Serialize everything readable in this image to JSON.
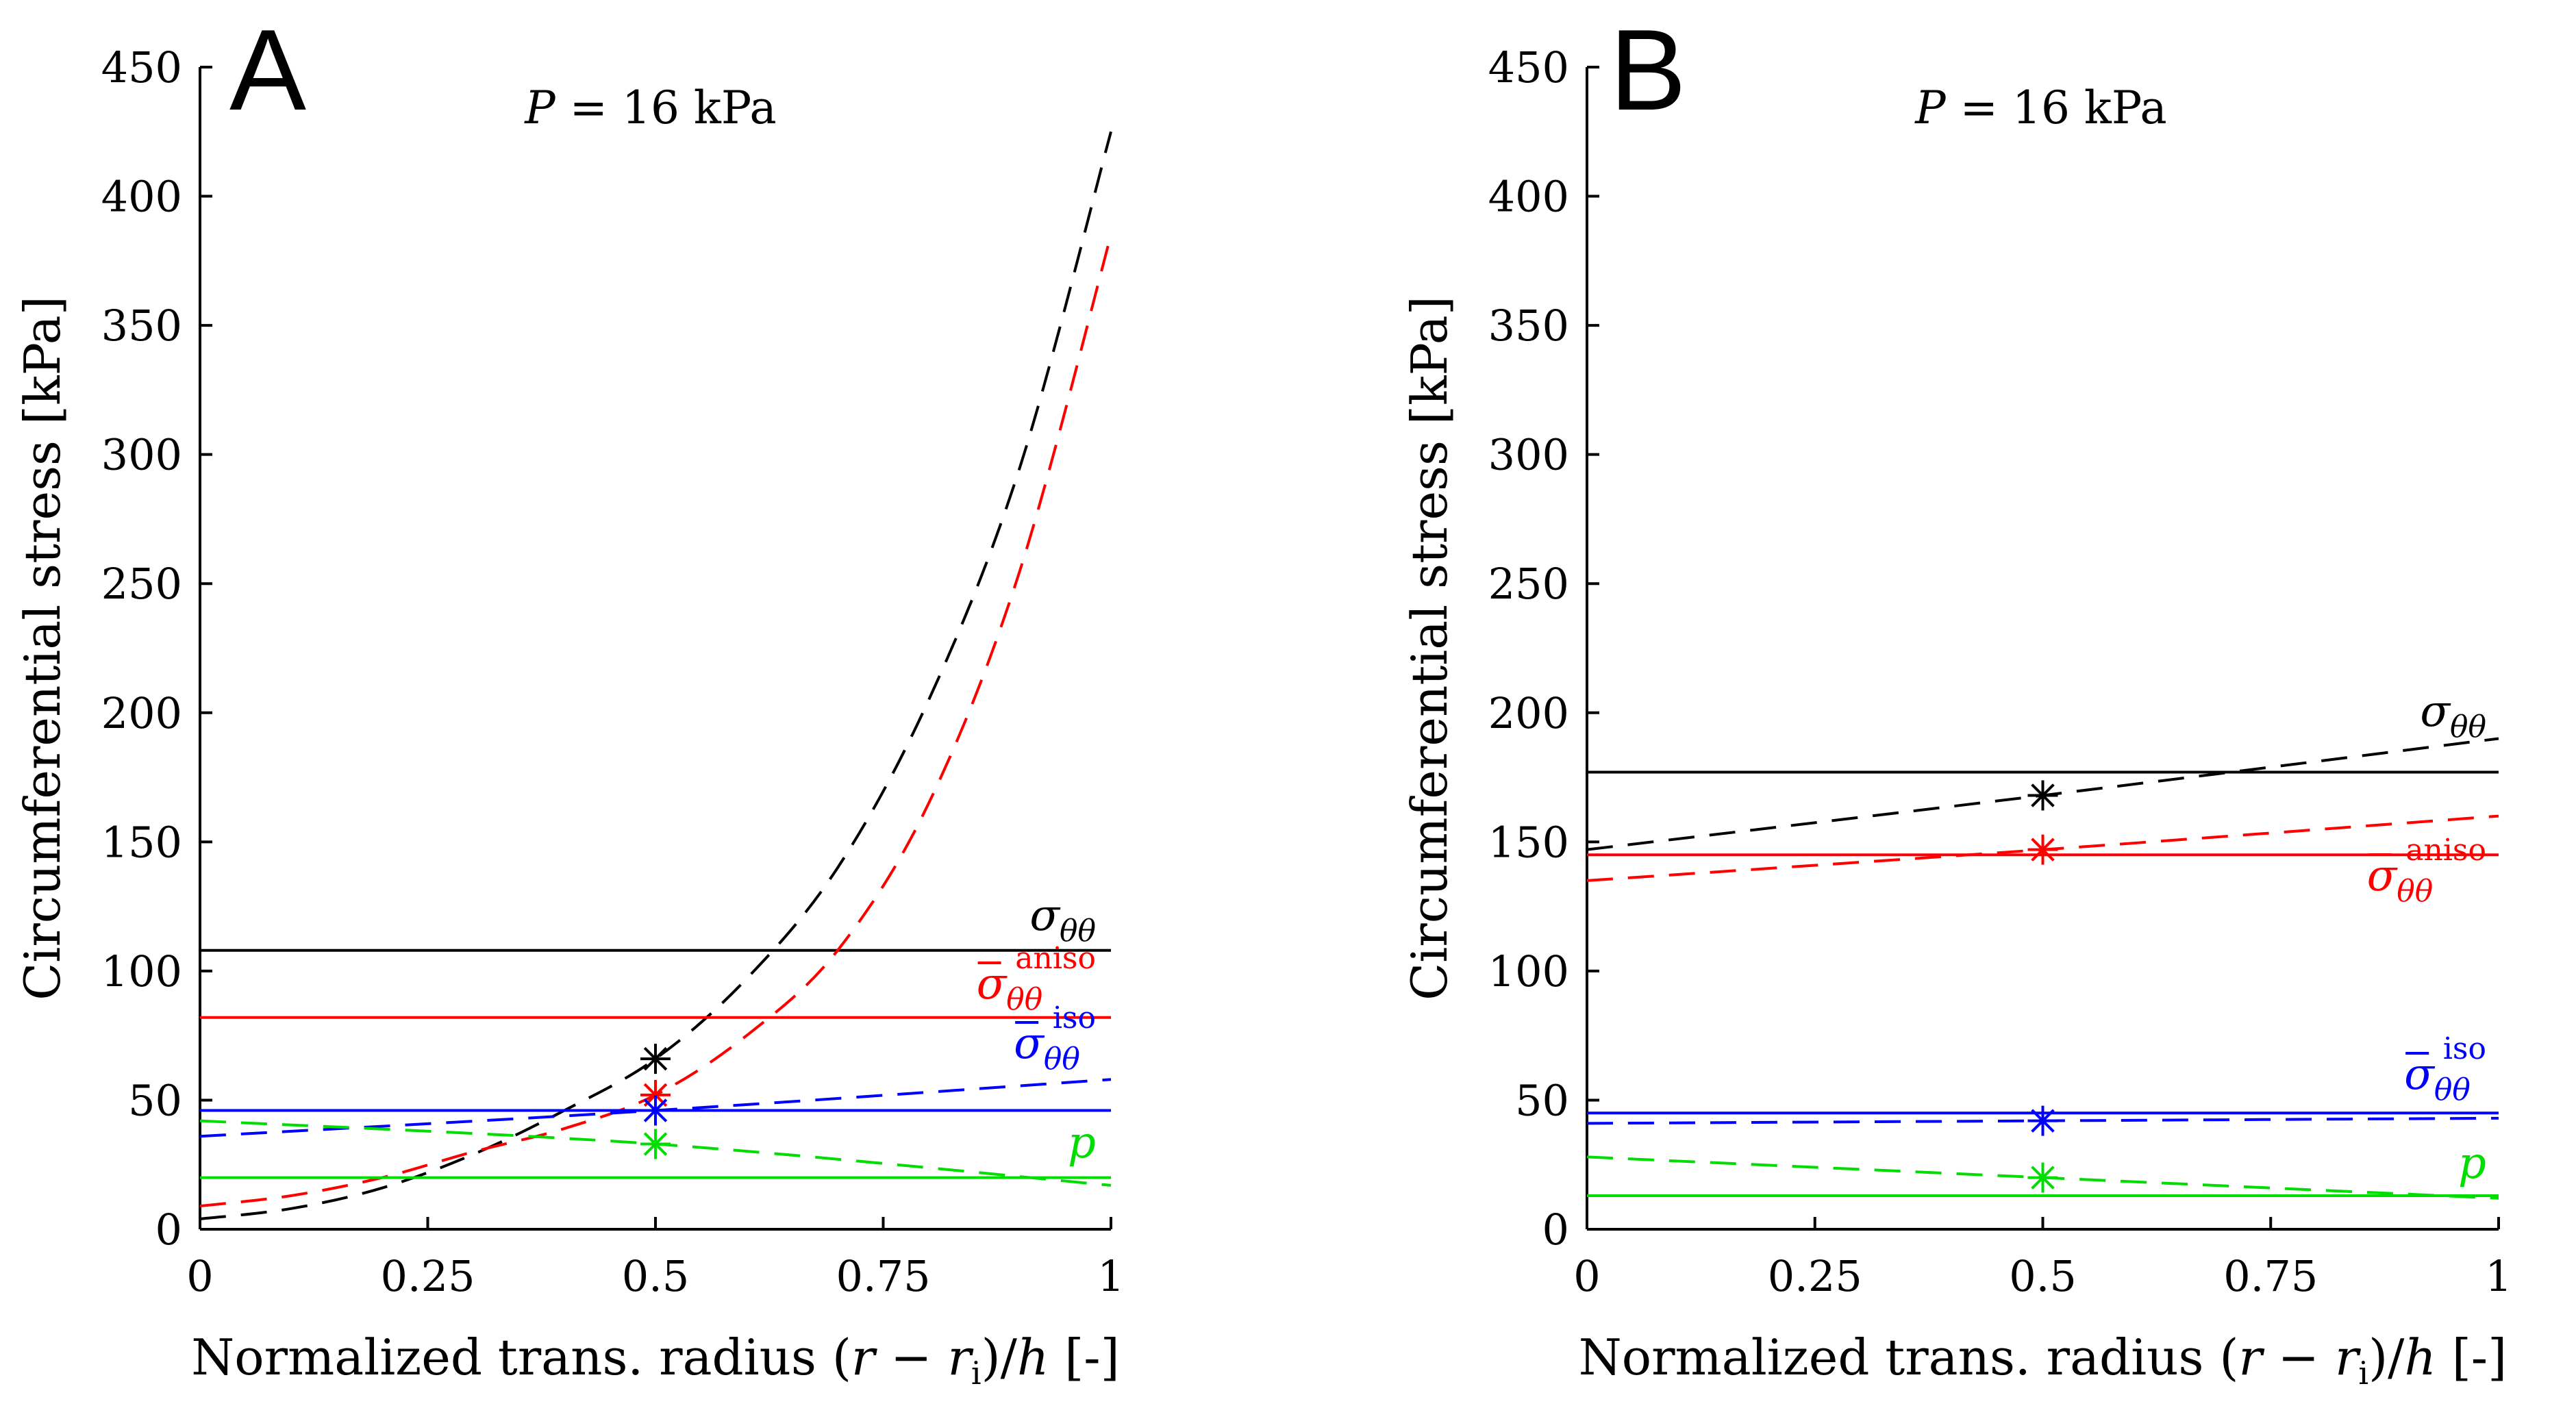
{
  "colors": {
    "sigma": "#000000",
    "aniso": "#ff0000",
    "iso": "#0000ff",
    "p": "#00dd00"
  },
  "chart_data": [
    {
      "type": "line",
      "panel": "A",
      "title": "P = 16 kPa",
      "pressure": {
        "symbol": "P",
        "operator": "=",
        "value": "16",
        "unit": "kPa"
      },
      "xlabel": "Normalized trans. radius (r − r_i)/h [-]",
      "xlabel_parts": {
        "prefix": "Normalized trans. radius ",
        "var_r": "r",
        "minus": " − ",
        "var_r2": "r",
        "sub_i": "i",
        "var_h": "h",
        "suffix": " [-]"
      },
      "ylabel": "Circumferential stress [kPa]",
      "xlim": [
        0,
        1
      ],
      "ylim": [
        0,
        450
      ],
      "xticks": [
        0,
        0.25,
        0.5,
        0.75,
        1
      ],
      "xtick_labels": [
        "0",
        "0.25",
        "0.5",
        "0.75",
        "1"
      ],
      "yticks": [
        0,
        50,
        100,
        150,
        200,
        250,
        300,
        350,
        400,
        450
      ],
      "ytick_labels": [
        "0",
        "50",
        "100",
        "150",
        "200",
        "250",
        "300",
        "350",
        "400",
        "450"
      ],
      "series": [
        {
          "key": "sigma",
          "name": "σθθ",
          "label_main": "σ",
          "label_sub": "θθ",
          "label_sup": "",
          "bar": false,
          "constant": 108,
          "dashed": {
            "x": [
              0,
              0.1,
              0.2,
              0.3,
              0.4,
              0.5,
              0.6,
              0.7,
              0.8,
              0.9,
              1.0
            ],
            "y": [
              4,
              8,
              16,
              29,
              46,
              66,
              97,
              140,
              205,
              295,
              425
            ]
          },
          "star": {
            "x": 0.5,
            "y": 66
          }
        },
        {
          "key": "aniso",
          "name": "σ̄θθ aniso",
          "label_main": "σ",
          "label_sub": "θθ",
          "label_sup": "aniso",
          "bar": true,
          "constant": 82,
          "dashed": {
            "x": [
              0,
              0.1,
              0.2,
              0.3,
              0.4,
              0.5,
              0.6,
              0.7,
              0.8,
              0.9,
              1.0
            ],
            "y": [
              9,
              13,
              20,
              30,
              39,
              52,
              75,
              108,
              165,
              255,
              385
            ]
          },
          "star": {
            "x": 0.5,
            "y": 52
          }
        },
        {
          "key": "iso",
          "name": "σ̄θθ iso",
          "label_main": "σ",
          "label_sub": "θθ",
          "label_sup": "iso",
          "bar": true,
          "constant": 46,
          "dashed": {
            "x": [
              0,
              0.5,
              1.0
            ],
            "y": [
              36,
              46,
              58
            ]
          },
          "star": {
            "x": 0.5,
            "y": 46
          }
        },
        {
          "key": "p",
          "name": "p",
          "label_main": "p",
          "label_sub": "",
          "label_sup": "",
          "bar": false,
          "constant": 20,
          "dashed": {
            "x": [
              0,
              0.5,
              1.0
            ],
            "y": [
              42,
              33,
              17
            ]
          },
          "star": {
            "x": 0.5,
            "y": 33
          }
        }
      ]
    },
    {
      "type": "line",
      "panel": "B",
      "title": "P = 16 kPa",
      "pressure": {
        "symbol": "P",
        "operator": "=",
        "value": "16",
        "unit": "kPa"
      },
      "xlabel": "Normalized trans. radius (r − r_i)/h [-]",
      "xlabel_parts": {
        "prefix": "Normalized trans. radius ",
        "var_r": "r",
        "minus": " − ",
        "var_r2": "r",
        "sub_i": "i",
        "var_h": "h",
        "suffix": " [-]"
      },
      "ylabel": "Circumferential stress [kPa]",
      "xlim": [
        0,
        1
      ],
      "ylim": [
        0,
        450
      ],
      "xticks": [
        0,
        0.25,
        0.5,
        0.75,
        1
      ],
      "xtick_labels": [
        "0",
        "0.25",
        "0.5",
        "0.75",
        "1"
      ],
      "yticks": [
        0,
        50,
        100,
        150,
        200,
        250,
        300,
        350,
        400,
        450
      ],
      "ytick_labels": [
        "0",
        "50",
        "100",
        "150",
        "200",
        "250",
        "300",
        "350",
        "400",
        "450"
      ],
      "series": [
        {
          "key": "sigma",
          "name": "σθθ",
          "label_main": "σ",
          "label_sub": "θθ",
          "label_sup": "",
          "bar": false,
          "constant": 177,
          "dashed": {
            "x": [
              0,
              0.5,
              1.0
            ],
            "y": [
              147,
              168,
              190
            ]
          },
          "star": {
            "x": 0.5,
            "y": 168
          }
        },
        {
          "key": "aniso",
          "name": "σ̄θθ aniso",
          "label_main": "σ",
          "label_sub": "θθ",
          "label_sup": "aniso",
          "bar": true,
          "constant": 145,
          "dashed": {
            "x": [
              0,
              0.5,
              1.0
            ],
            "y": [
              135,
              147,
              160
            ]
          },
          "star": {
            "x": 0.5,
            "y": 147
          }
        },
        {
          "key": "iso",
          "name": "σ̄θθ iso",
          "label_main": "σ",
          "label_sub": "θθ",
          "label_sup": "iso",
          "bar": true,
          "constant": 45,
          "dashed": {
            "x": [
              0,
              0.5,
              1.0
            ],
            "y": [
              41,
              42,
              43
            ]
          },
          "star": {
            "x": 0.5,
            "y": 42
          }
        },
        {
          "key": "p",
          "name": "p",
          "label_main": "p",
          "label_sub": "",
          "label_sup": "",
          "bar": false,
          "constant": 13,
          "dashed": {
            "x": [
              0,
              0.5,
              1.0
            ],
            "y": [
              28,
              20,
              12
            ]
          },
          "star": {
            "x": 0.5,
            "y": 20
          }
        }
      ]
    }
  ]
}
